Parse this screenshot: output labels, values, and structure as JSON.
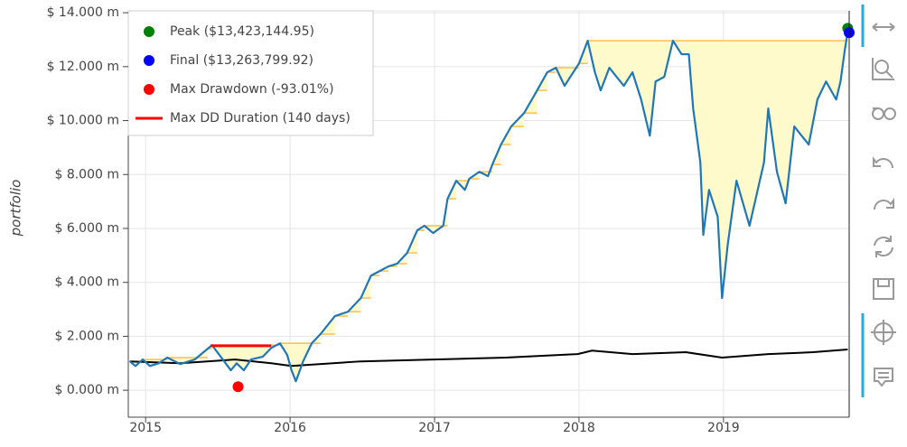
{
  "chart_data": {
    "type": "line",
    "y_label": "portfolio",
    "xlim": [
      2014.88,
      2019.87
    ],
    "xticks": [
      2015,
      2016,
      2017,
      2018,
      2019
    ],
    "ylim": [
      -1000000,
      14070000
    ],
    "yticks": [
      {
        "value": 0,
        "label": "$ 0.000 m"
      },
      {
        "value": 2000000,
        "label": "$ 2.000 m"
      },
      {
        "value": 4000000,
        "label": "$ 4.000 m"
      },
      {
        "value": 6000000,
        "label": "$ 6.000 m"
      },
      {
        "value": 8000000,
        "label": "$ 8.000 m"
      },
      {
        "value": 10000000,
        "label": "$ 10.000 m"
      },
      {
        "value": 12000000,
        "label": "$ 12.000 m"
      },
      {
        "value": 14000000,
        "label": "$ 14.000 m"
      }
    ],
    "grid": true,
    "equity": {
      "color": "#1f77b4",
      "x": [
        2014.89,
        2014.93,
        2014.98,
        2015.03,
        2015.09,
        2015.15,
        2015.24,
        2015.34,
        2015.43,
        2015.46,
        2015.53,
        2015.59,
        2015.63,
        2015.68,
        2015.73,
        2015.81,
        2015.87,
        2015.93,
        2015.98,
        2016.01,
        2016.04,
        2016.09,
        2016.15,
        2016.21,
        2016.31,
        2016.4,
        2016.49,
        2016.56,
        2016.62,
        2016.68,
        2016.74,
        2016.81,
        2016.88,
        2016.93,
        2016.99,
        2017.06,
        2017.09,
        2017.15,
        2017.21,
        2017.24,
        2017.31,
        2017.37,
        2017.4,
        2017.46,
        2017.53,
        2017.62,
        2017.71,
        2017.78,
        2017.84,
        2017.9,
        2018.0,
        2018.06,
        2018.11,
        2018.15,
        2018.21,
        2018.31,
        2018.37,
        2018.43,
        2018.49,
        2018.53,
        2018.59,
        2018.65,
        2018.71,
        2018.76,
        2018.79,
        2018.84,
        2018.86,
        2018.9,
        2018.96,
        2018.99,
        2019.03,
        2019.09,
        2019.18,
        2019.28,
        2019.31,
        2019.37,
        2019.43,
        2019.49,
        2019.59,
        2019.65,
        2019.71,
        2019.78,
        2019.81,
        2019.84,
        2019.86
      ],
      "values": [
        1070000,
        900000,
        1140000,
        900000,
        1000000,
        1210000,
        970000,
        1140000,
        1540000,
        1670000,
        1170000,
        740000,
        1000000,
        740000,
        1140000,
        1240000,
        1570000,
        1740000,
        1310000,
        740000,
        330000,
        1070000,
        1740000,
        2080000,
        2750000,
        2910000,
        3420000,
        4250000,
        4420000,
        4590000,
        4690000,
        5090000,
        5930000,
        6100000,
        5830000,
        6100000,
        7100000,
        7770000,
        7430000,
        7840000,
        8100000,
        7940000,
        8370000,
        9110000,
        9780000,
        10280000,
        11120000,
        11790000,
        11960000,
        11290000,
        12120000,
        12960000,
        11790000,
        11120000,
        11960000,
        11290000,
        11790000,
        10780000,
        9440000,
        11450000,
        11620000,
        12960000,
        12460000,
        12460000,
        10450000,
        8440000,
        5760000,
        7430000,
        6430000,
        3420000,
        5430000,
        7770000,
        6100000,
        8440000,
        10450000,
        8100000,
        6930000,
        9780000,
        9110000,
        10780000,
        11450000,
        10780000,
        11450000,
        12630000,
        13300000
      ]
    },
    "buy_hold": {
      "color": "#000000",
      "x": [
        2014.89,
        2015.24,
        2015.62,
        2015.87,
        2016.01,
        2016.49,
        2016.99,
        2017.49,
        2017.99,
        2018.09,
        2018.37,
        2018.74,
        2018.99,
        2019.31,
        2019.62,
        2019.86
      ],
      "values": [
        1070000,
        1000000,
        1140000,
        1000000,
        900000,
        1070000,
        1140000,
        1210000,
        1340000,
        1470000,
        1340000,
        1410000,
        1210000,
        1340000,
        1410000,
        1510000
      ]
    },
    "markers": [
      {
        "name": "Peak ($13,423,144.95)",
        "color": "#008000",
        "x": 2019.86,
        "y": 13423144.95
      },
      {
        "name": "Final ($13,263,799.92)",
        "color": "#0000ff",
        "x": 2019.87,
        "y": 13263799.92
      },
      {
        "name": "Max Drawdown (-93.01%)",
        "color": "#ff0000",
        "x": 2015.64,
        "y": 130000
      }
    ],
    "duration": {
      "name": "Max DD Duration (140 days)",
      "color": "#ff0000",
      "x": [
        2015.45,
        2015.87
      ],
      "y": 1650000
    }
  }
}
